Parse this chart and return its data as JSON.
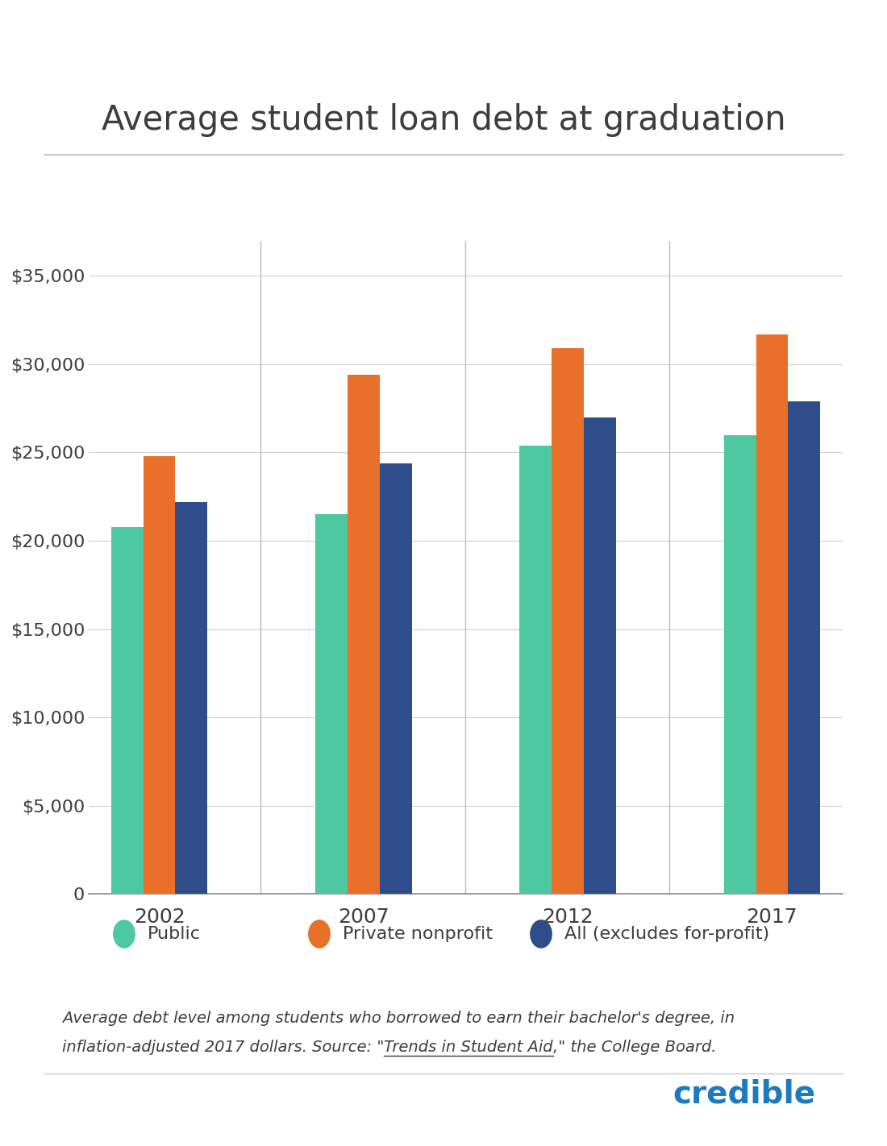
{
  "title": "Average student loan debt at graduation",
  "years": [
    "2002",
    "2007",
    "2012",
    "2017"
  ],
  "public": [
    20800,
    21500,
    25400,
    26000
  ],
  "private_nonprofit": [
    24800,
    29400,
    30900,
    31700
  ],
  "all": [
    22200,
    24400,
    27000,
    27900
  ],
  "colors": {
    "public": "#4dc8a0",
    "private_nonprofit": "#e8702a",
    "all": "#2e4d8a"
  },
  "legend_labels": [
    "Public",
    "Private nonprofit",
    "All (excludes for-profit)"
  ],
  "ylim": [
    0,
    37000
  ],
  "yticks": [
    0,
    5000,
    10000,
    15000,
    20000,
    25000,
    30000,
    35000
  ],
  "background_color": "#ffffff",
  "title_color": "#3d3d3d",
  "tick_color": "#3d3d3d",
  "grid_color": "#d0d0d0",
  "credible_color": "#1a7bbf",
  "separator_color": "#c8c8c8"
}
